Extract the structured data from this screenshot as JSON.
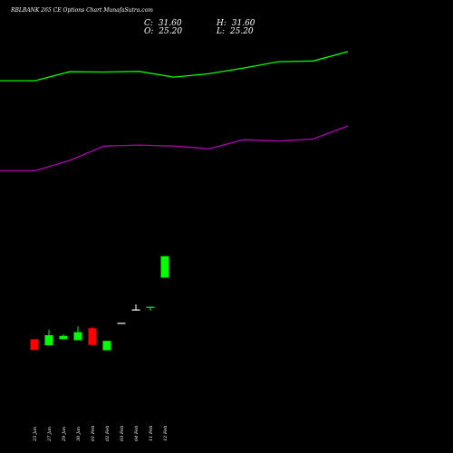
{
  "colors": {
    "background": "#000000",
    "up": "#00ff00",
    "down": "#ff0000",
    "neutral": "#ffffff",
    "upper_band": "#00ff00",
    "lower_band": "#b000b0",
    "text": "#ffffff"
  },
  "chart_data": {
    "type": "candlestick",
    "title": "RBLBANK 265 CE Options  Chart MunafaSutra.com",
    "ohlc_readout": {
      "open_label": "O:",
      "open_value": "25.20",
      "high_label": "H:",
      "high_value": "31.60",
      "low_label": "L:",
      "low_value": "25.20",
      "close_label": "C:",
      "close_value": "31.60"
    },
    "categories": [
      "23 Jan",
      "27 Jan",
      "29 Jan",
      "30 Jan",
      "01 Feb",
      "02 Feb",
      "03 Feb",
      "04 Feb",
      "11 Feb",
      "12 Feb"
    ],
    "candles": [
      {
        "o": 6.8,
        "h": 6.8,
        "l": 3.6,
        "c": 3.6
      },
      {
        "o": 5.0,
        "h": 9.6,
        "l": 5.0,
        "c": 8.0
      },
      {
        "o": 6.8,
        "h": 8.2,
        "l": 6.8,
        "c": 7.8
      },
      {
        "o": 6.5,
        "h": 10.6,
        "l": 6.5,
        "c": 8.9
      },
      {
        "o": 10.1,
        "h": 10.6,
        "l": 5.0,
        "c": 5.1
      },
      {
        "o": 3.5,
        "h": 6.3,
        "l": 3.5,
        "c": 6.3
      },
      {
        "o": 11.7,
        "h": 11.7,
        "l": 11.7,
        "c": 11.7
      },
      {
        "o": 15.7,
        "h": 17.2,
        "l": 15.4,
        "c": 15.7
      },
      {
        "o": 16.2,
        "h": 16.5,
        "l": 15.3,
        "c": 16.5
      },
      {
        "o": 25.2,
        "h": 31.6,
        "l": 25.2,
        "c": 31.6
      }
    ],
    "upper_band": [
      84.0,
      84.0,
      86.7,
      86.6,
      86.8,
      85.1,
      86.1,
      87.8,
      89.7,
      89.9,
      92.7
    ],
    "lower_band": [
      57.1,
      57.1,
      60.2,
      64.5,
      64.8,
      64.5,
      63.7,
      66.4,
      66.0,
      66.6,
      70.5
    ],
    "band_x": [
      0.0,
      1.0,
      2.0,
      3.0,
      4.0,
      5.0,
      6.0,
      7.0,
      8.0,
      9.0,
      10.0
    ],
    "ylim": [
      -15,
      100
    ],
    "grid": false
  }
}
